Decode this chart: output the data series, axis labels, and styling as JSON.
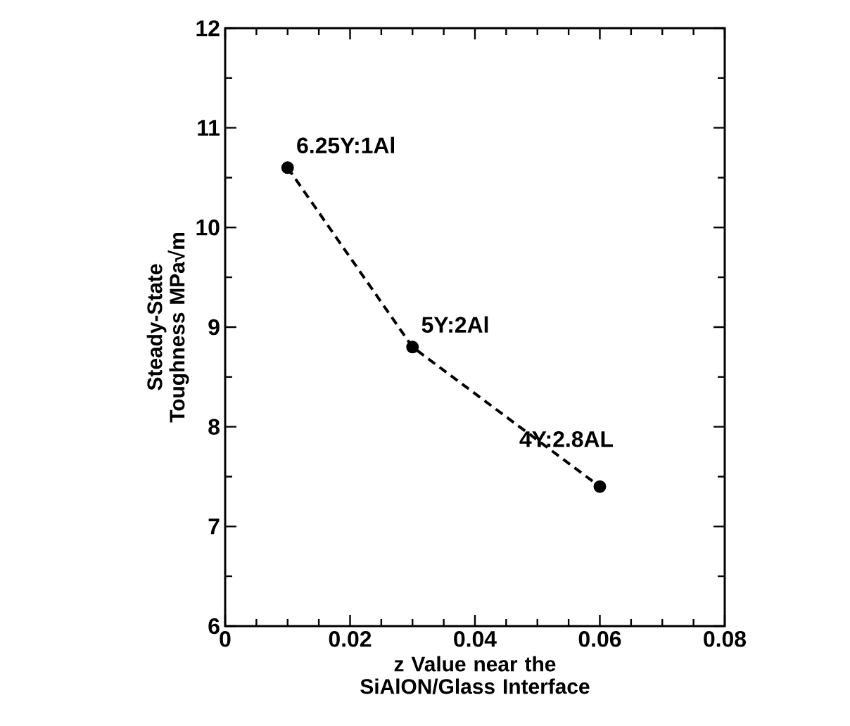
{
  "chart_data": {
    "type": "line",
    "xlabel": "z Value near the SiAlON/Glass Interface",
    "ylabel": "Steady-State Toughness MPa√m",
    "series": [
      {
        "x": [
          0.01,
          0.03,
          0.06
        ],
        "values": [
          10.6,
          8.8,
          7.4
        ],
        "color": "#000000"
      }
    ],
    "xlim": [
      0,
      0.08
    ],
    "ylim": [
      6,
      12
    ],
    "xticks": [
      0,
      0.02,
      0.04,
      0.06,
      0.08
    ],
    "yticks": [
      6,
      7,
      8,
      9,
      10,
      11,
      12
    ],
    "marker": "circle",
    "line_style": "dashed",
    "annotations": [
      {
        "text": "6.25Y:1Al",
        "x": 0.01,
        "y": 10.6
      },
      {
        "text": "5Y:2Al",
        "x": 0.03,
        "y": 8.8
      },
      {
        "text": "4Y:2.8AL",
        "x": 0.06,
        "y": 7.4
      }
    ]
  }
}
